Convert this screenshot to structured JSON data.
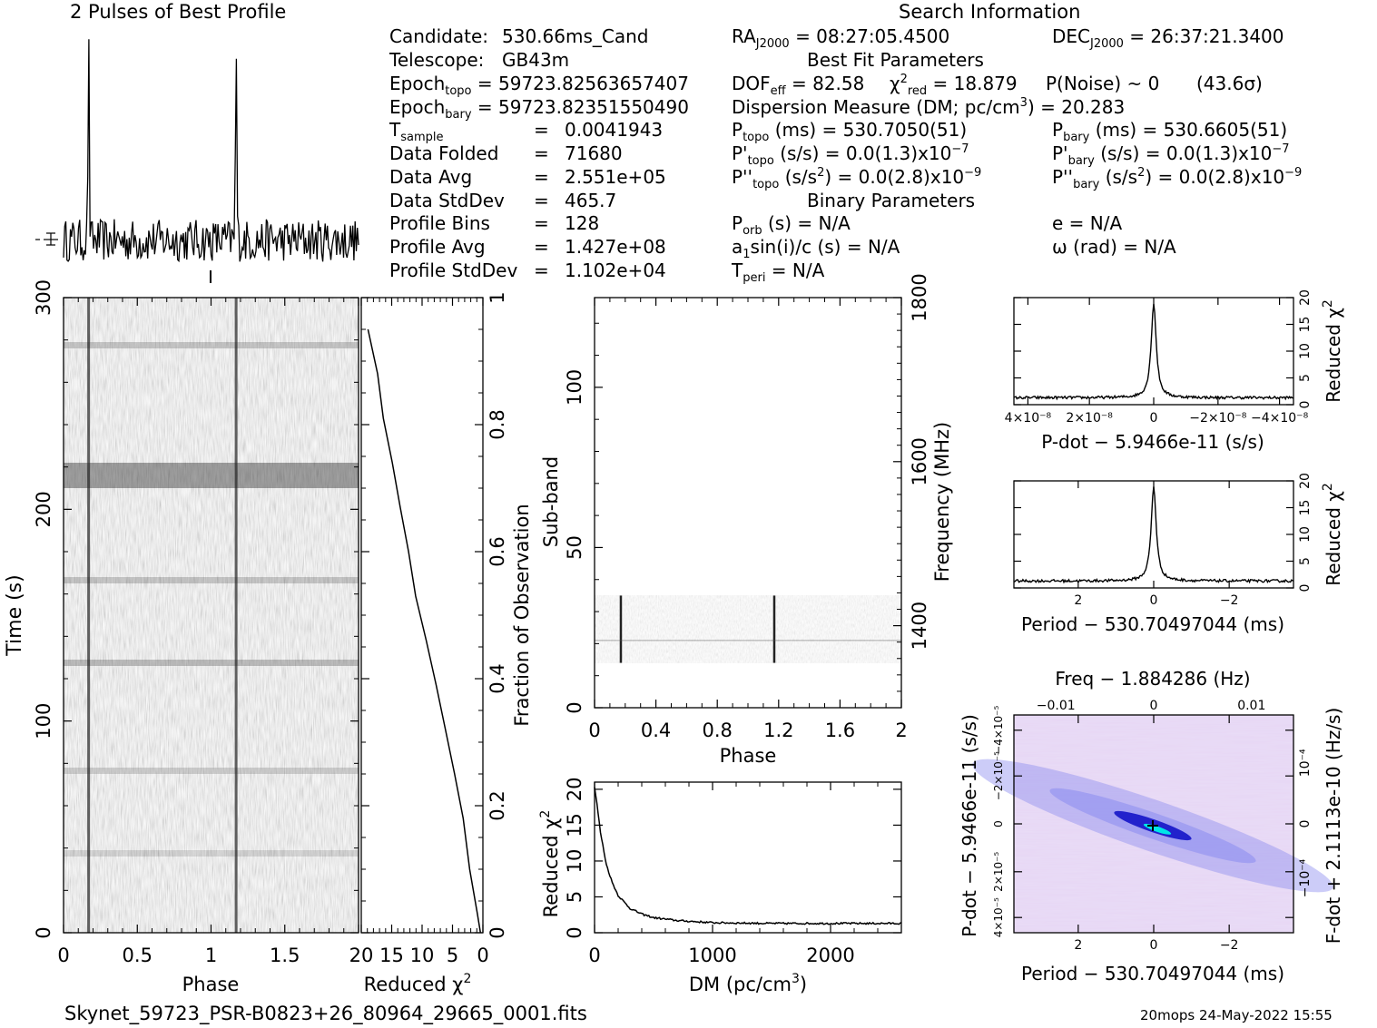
{
  "header": {
    "profile_title": "2 Pulses of Best Profile",
    "search_title": "Search Information",
    "best_fit_title": "Best Fit Parameters",
    "binary_title": "Binary Parameters"
  },
  "info": {
    "candidate_label": "Candidate:",
    "candidate_value": "530.66ms_Cand",
    "telescope_label": "Telescope:",
    "telescope_value": "GB43m",
    "epoch_topo_label": "Epoch",
    "epoch_topo_sub": "topo",
    "epoch_topo_value": "= 59723.82563657407",
    "epoch_bary_label": "Epoch",
    "epoch_bary_sub": "bary",
    "epoch_bary_value": "= 59723.82351550490",
    "t_sample_label": "T",
    "t_sample_sub": "sample",
    "t_sample_value": "0.0041943",
    "data_folded_label": "Data Folded",
    "data_folded_value": "71680",
    "data_avg_label": "Data Avg",
    "data_avg_value": "2.551e+05",
    "data_std_label": "Data StdDev",
    "data_std_value": "465.7",
    "profile_bins_label": "Profile Bins",
    "profile_bins_value": "128",
    "profile_avg_label": "Profile Avg",
    "profile_avg_value": "1.427e+08",
    "profile_std_label": "Profile StdDev",
    "profile_std_value": "1.102e+04",
    "eq": "="
  },
  "search": {
    "ra_label": "RA",
    "ra_sub": "J2000",
    "ra_value": "= 08:27:05.4500",
    "dec_label": "DEC",
    "dec_sub": "J2000",
    "dec_value": "= 26:37:21.3400",
    "dof_label": "DOF",
    "dof_sub": "eff",
    "dof_value": "= 82.58",
    "chi_label": "χ",
    "chi_sup": "2",
    "chi_sub": "red",
    "chi_value": "= 18.879",
    "pnoise": "P(Noise) ~ 0",
    "sigma": "(43.6σ)",
    "dm_text": "Dispersion Measure (DM; pc/cm",
    "dm_sup": "3",
    "dm_value": ") = 20.283",
    "ptopo_label": "P",
    "ptopo_sub": "topo",
    "ptopo_value": "(ms) =  530.7050(51)",
    "pbary_label": "P",
    "pbary_sub": "bary",
    "pbary_value": "(ms) =  530.6605(51)",
    "pdtopo_label": "P'",
    "pdtopo_sub": "topo",
    "pdtopo_value": "(s/s) = 0.0(1.3)x10",
    "pdtopo_sup": "−7",
    "pdbary_label": "P'",
    "pdbary_sub": "bary",
    "pdbary_value": "(s/s) = 0.0(1.3)x10",
    "pdbary_sup": "−7",
    "pddtopo_label": "P''",
    "pddtopo_sub": "topo",
    "pddtopo_pre": "(s/s",
    "pddtopo_sup1": "2",
    "pddtopo_value": ") = 0.0(2.8)x10",
    "pddtopo_sup": "−9",
    "pddbary_label": "P''",
    "pddbary_sub": "bary",
    "pddbary_pre": "(s/s",
    "pddbary_sup1": "2",
    "pddbary_value": ") = 0.0(2.8)x10",
    "pddbary_sup": "−9",
    "porb_label": "P",
    "porb_sub": "orb",
    "porb_value": "(s) = N/A",
    "e_text": "e = N/A",
    "a1_label": "a",
    "a1_sub": "1",
    "a1_value": "sin(i)/c (s) = N/A",
    "omega_text": "ω (rad) = N/A",
    "tperi_label": "T",
    "tperi_sub": "peri",
    "tperi_value": "= N/A"
  },
  "footer": {
    "filename": "Skynet_59723_PSR-B0823+26_80964_29665_0001.fits",
    "stamp": "20mops 24-May-2022 15:55"
  },
  "chart_data": [
    {
      "id": "profile",
      "type": "line",
      "title": "2 Pulses of Best Profile",
      "x_range": [
        0,
        2
      ],
      "pulse_phases": [
        0.17,
        1.17
      ],
      "pulse_height": 1.0,
      "noise_level": 0.03
    },
    {
      "id": "time_phase",
      "type": "heatmap",
      "xlabel": "Phase",
      "ylabel": "Time (s)",
      "xlim": [
        0,
        2
      ],
      "ylim": [
        0,
        300
      ],
      "x_ticks": [
        "0",
        "0.5",
        "1",
        "1.5"
      ],
      "y_ticks": [
        "0",
        "100",
        "200",
        "300"
      ],
      "pulse_phases": [
        0.17,
        1.17
      ]
    },
    {
      "id": "time_chi",
      "type": "line",
      "xlabel": "Reduced χ",
      "xlabel_sup": "2",
      "ylabel": "Fraction of Observation",
      "xlim": [
        20,
        0
      ],
      "ylim": [
        0,
        1
      ],
      "x_ticks": [
        "20",
        "15",
        "10",
        "5",
        "0"
      ],
      "y_ticks": [
        "0",
        "0.2",
        "0.4",
        "0.6",
        "0.8",
        "1"
      ],
      "x": [
        0.4,
        0.9,
        2.0,
        3.2,
        4.6,
        6.2,
        7.8,
        9.5,
        11.0,
        12.4,
        13.8,
        15.0,
        16.3,
        17.5,
        18.9
      ],
      "y": [
        0.0,
        0.03,
        0.1,
        0.18,
        0.25,
        0.32,
        0.39,
        0.46,
        0.53,
        0.6,
        0.67,
        0.74,
        0.81,
        0.88,
        0.95
      ]
    },
    {
      "id": "subband",
      "type": "heatmap",
      "xlabel": "Phase",
      "ylabel": "Sub-band",
      "ylabel_right": "Frequency (MHz)",
      "xlim": [
        0,
        2
      ],
      "ylim": [
        0,
        128
      ],
      "x_ticks": [
        "0",
        "0.4",
        "0.8",
        "1.2",
        "1.6",
        "2"
      ],
      "y_ticks": [
        "0",
        "50",
        "100"
      ],
      "y_ticks_right": [
        "1400",
        "1600",
        "1800"
      ],
      "band_range": [
        14,
        35
      ],
      "pulse_phases": [
        0.17,
        1.17
      ]
    },
    {
      "id": "dm_chi",
      "type": "line",
      "xlabel": "DM (pc/cm",
      "xlabel_sup": "3",
      "xlabel_end": ")",
      "ylabel": "Reduced χ",
      "ylabel_sup": "2",
      "xlim": [
        0,
        2600
      ],
      "ylim": [
        0,
        21
      ],
      "x_ticks": [
        "0",
        "1000",
        "2000"
      ],
      "y_ticks": [
        "0",
        "5",
        "10",
        "15",
        "20"
      ],
      "x": [
        0,
        20,
        50,
        100,
        150,
        200,
        300,
        400,
        500,
        700,
        1000,
        1500,
        2000,
        2600
      ],
      "y": [
        20.3,
        18.0,
        14.0,
        9.5,
        7.0,
        5.2,
        3.4,
        2.6,
        2.1,
        1.7,
        1.4,
        1.3,
        1.3,
        1.3
      ]
    },
    {
      "id": "pdot_chi",
      "type": "line",
      "xlabel": "P-dot − 5.9466e-11 (s/s)",
      "ylabel": "Reduced χ",
      "ylabel_sup": "2",
      "xlim": [
        5e-08,
        -5e-08
      ],
      "ylim": [
        0,
        20
      ],
      "x_ticks": [
        "4×10⁻⁸",
        "2×10⁻⁸",
        "0",
        "−2×10⁻⁸",
        "−4×10⁻⁸"
      ],
      "y_ticks": [
        "0",
        "5",
        "10",
        "15",
        "20"
      ],
      "peak_value": 18.9,
      "baseline": 1.3
    },
    {
      "id": "period_chi",
      "type": "line",
      "xlabel": "Period − 530.70497044 (ms)",
      "ylabel": "Reduced χ",
      "ylabel_sup": "2",
      "xlim": [
        3.5,
        -3.5
      ],
      "ylim": [
        0,
        20
      ],
      "x_ticks": [
        "2",
        "0",
        "−2"
      ],
      "y_ticks": [
        "0",
        "5",
        "10",
        "15",
        "20"
      ],
      "peak_value": 18.9,
      "baseline": 1.3
    },
    {
      "id": "p_pdot",
      "type": "heatmap",
      "xlabel": "Period − 530.70497044 (ms)",
      "ylabel": "P-dot − 5.9466e-11 (s/s)",
      "top_label": "Freq − 1.884286 (Hz)",
      "right_label": "F-dot + 2.1113e-10 (Hz/s)",
      "x_ticks": [
        "2",
        "0",
        "−2"
      ],
      "x_ticks_top": [
        "−0.01",
        "0",
        "0.01"
      ],
      "y_ticks": [
        "4×10⁻⁵",
        "2×10⁻⁵",
        "0",
        "−2×10⁻⁵",
        "−4×10⁻⁵"
      ],
      "y_ticks_right": [
        "−10⁻⁴",
        "0",
        "10⁻⁴"
      ],
      "colors": {
        "background": "#e6d6f4",
        "mid": "#8f8ff0",
        "core": "#1414c8",
        "peak": "#00e6e6"
      }
    }
  ]
}
